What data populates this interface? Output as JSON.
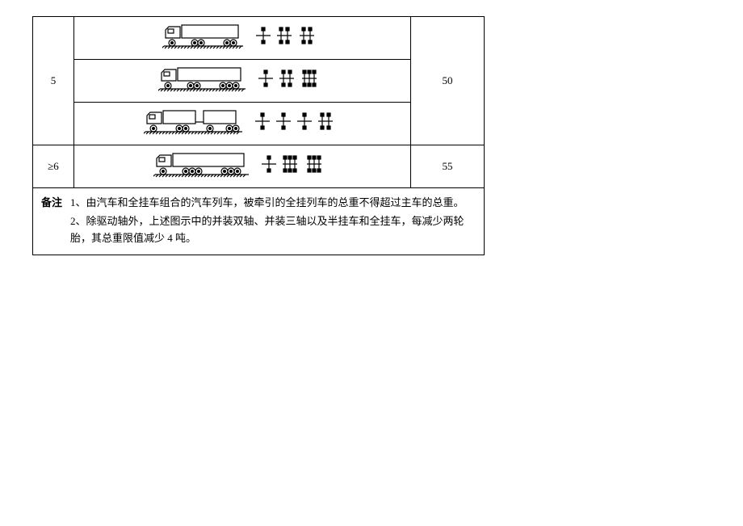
{
  "rows": [
    {
      "axle_count": "5",
      "limit": "50",
      "variants": [
        {
          "truck": "semi-2-2",
          "axle": "A_B2_C2"
        },
        {
          "truck": "semi-2-3",
          "axle": "A_B2_C3"
        },
        {
          "truck": "full-2-2-2",
          "axle": "A_B_C_D2"
        }
      ]
    },
    {
      "axle_count": "≥6",
      "limit": "55",
      "variants": [
        {
          "truck": "semi-3-3",
          "axle": "A_B3_C3"
        }
      ]
    }
  ],
  "notes": {
    "label": "备注",
    "items": [
      {
        "n": "1、",
        "text": "由汽车和全挂车组合的汽车列车，被牵引的全挂列车的总重不得超过主车的总重。"
      },
      {
        "n": "2、",
        "text": "除驱动轴外，上述图示中的并装双轴、并装三轴以及半挂车和全挂车，每减少两轮胎，其总重限值减少 4 吨。"
      }
    ]
  },
  "style": {
    "stroke": "#000",
    "sw": 1.2
  }
}
